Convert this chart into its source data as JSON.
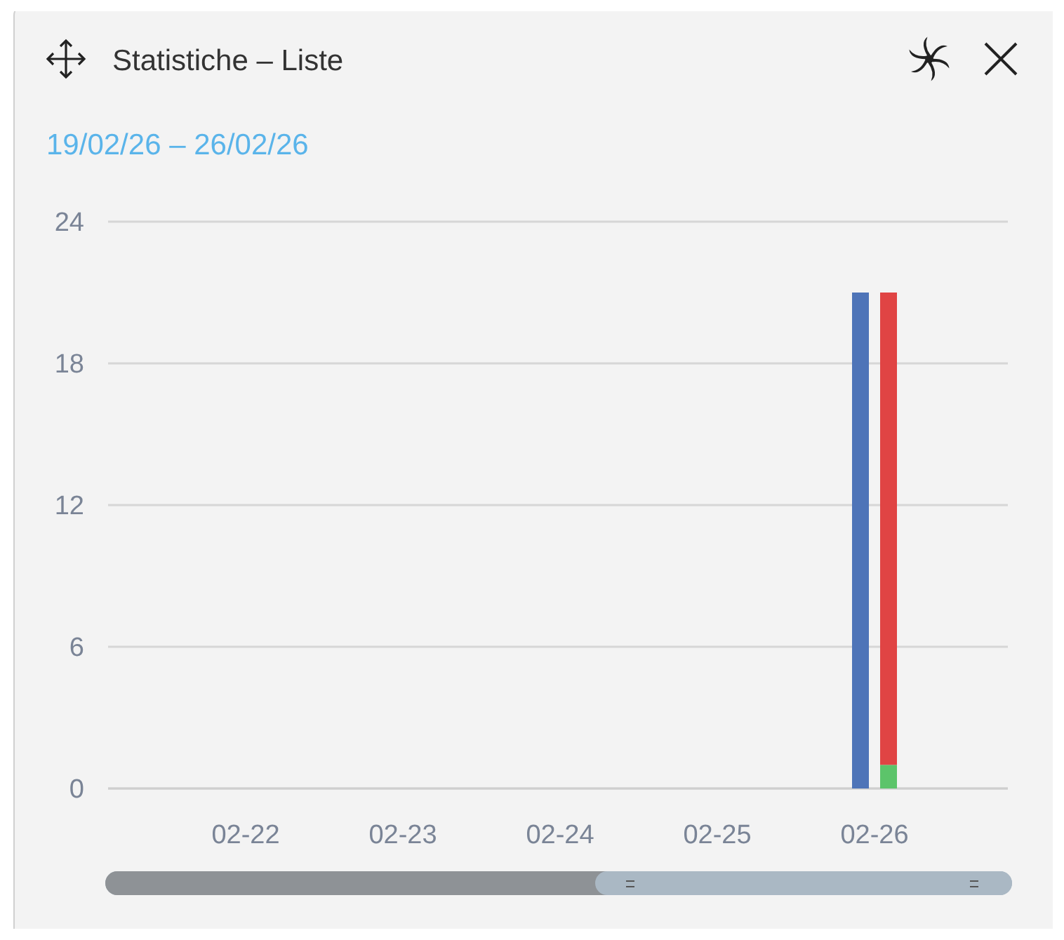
{
  "chart_data": {
    "type": "bar",
    "title": "Statistiche – Liste",
    "subtitle": "19/02/26 – 26/02/26",
    "categories": [
      "02-22",
      "02-23",
      "02-24",
      "02-25",
      "02-26"
    ],
    "series": [
      {
        "color": "#4e74b8",
        "values": [
          0,
          0,
          0,
          0,
          21
        ]
      },
      {
        "color": "#5cc46a",
        "values": [
          0,
          0,
          0,
          0,
          1
        ]
      },
      {
        "color": "#e04444",
        "values": [
          0,
          0,
          0,
          0,
          20
        ],
        "base": [
          null,
          null,
          null,
          null,
          1
        ]
      }
    ],
    "ylim": [
      0,
      24
    ],
    "yticks": [
      0,
      6,
      12,
      18,
      24
    ],
    "grid": "y"
  }
}
